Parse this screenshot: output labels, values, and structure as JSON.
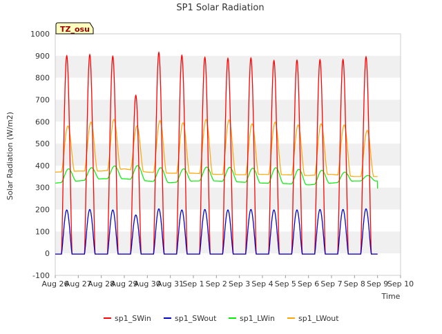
{
  "chart_data": {
    "type": "line",
    "title": "SP1 Solar Radiation",
    "xlabel": "Time",
    "ylabel": "Solar Radiation (W/m2)",
    "ylim": [
      -100,
      1000
    ],
    "yticks": [
      -100,
      0,
      100,
      200,
      300,
      400,
      500,
      600,
      700,
      800,
      900,
      1000
    ],
    "xlim": [
      0,
      15
    ],
    "x_tick_labels": [
      "Aug 26",
      "Aug 27",
      "Aug 28",
      "Aug 29",
      "Aug 30",
      "Aug 31",
      "Sep 1",
      "Sep 2",
      "Sep 3",
      "Sep 4",
      "Sep 5",
      "Sep 6",
      "Sep 7",
      "Sep 8",
      "Sep 9",
      "Sep 10"
    ],
    "x_unit": "days since Aug 26 00:00",
    "grid": "horizontal bands",
    "legend_position": "bottom",
    "site_label": "TZ_osu",
    "series": [
      {
        "name": "sp1_SWin",
        "color": "#ff0000",
        "daily_peaks": [
          900,
          905,
          898,
          720,
          915,
          902,
          893,
          888,
          890,
          878,
          880,
          882,
          883,
          895
        ],
        "night_value": -3
      },
      {
        "name": "sp1_SWout",
        "color": "#0000cc",
        "daily_peaks": [
          198,
          200,
          198,
          175,
          203,
          198,
          200,
          198,
          200,
          198,
          198,
          200,
          200,
          203
        ],
        "night_value": -3
      },
      {
        "name": "sp1_LWin",
        "color": "#00ee00",
        "daily_min": [
          320,
          330,
          340,
          340,
          330,
          322,
          330,
          330,
          325,
          320,
          318,
          312,
          320,
          330
        ],
        "daily_max": [
          385,
          390,
          398,
          400,
          390,
          385,
          393,
          392,
          388,
          390,
          383,
          378,
          370,
          355
        ],
        "end_value": 295
      },
      {
        "name": "sp1_LWout",
        "color": "#ffa500",
        "daily_min": [
          370,
          375,
          375,
          385,
          370,
          365,
          365,
          360,
          358,
          360,
          358,
          355,
          360,
          350
        ],
        "daily_max": [
          580,
          598,
          610,
          580,
          605,
          595,
          610,
          608,
          590,
          598,
          585,
          590,
          585,
          560
        ]
      }
    ]
  }
}
